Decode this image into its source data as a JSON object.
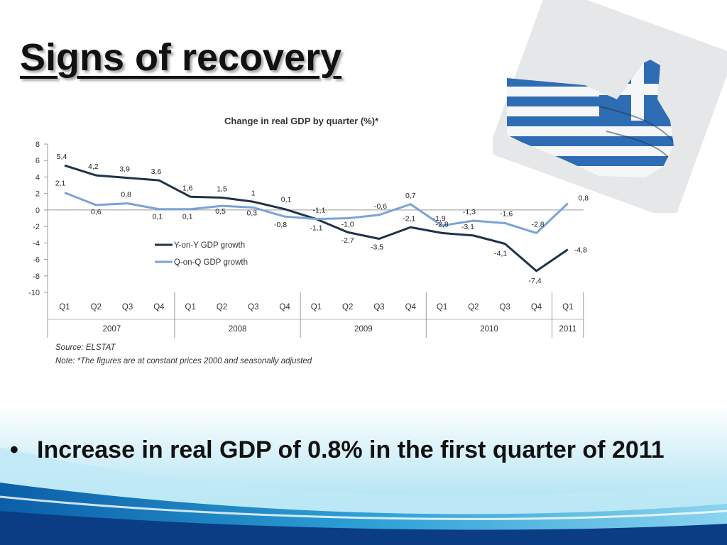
{
  "slide": {
    "title": "Signs of recovery",
    "bullet": "Increase in real GDP of 0.8% in the first quarter of 2011"
  },
  "colors": {
    "yoy_line": "#1f3349",
    "qoq_line": "#7aa3d6",
    "greek_blue": "#2e6db4"
  },
  "photo": {
    "icon": "greek-flag-thumbs-up"
  },
  "chart_data": {
    "type": "line",
    "title": "Change in real GDP by quarter (%)*",
    "categories": [
      "Q1",
      "Q2",
      "Q3",
      "Q4",
      "Q1",
      "Q2",
      "Q3",
      "Q4",
      "Q1",
      "Q2",
      "Q3",
      "Q4",
      "Q1",
      "Q2",
      "Q3",
      "Q4",
      "Q1"
    ],
    "year_groups": [
      {
        "label": "2007",
        "quarters": 4
      },
      {
        "label": "2008",
        "quarters": 4
      },
      {
        "label": "2009",
        "quarters": 4
      },
      {
        "label": "2010",
        "quarters": 4
      },
      {
        "label": "2011",
        "quarters": 1
      }
    ],
    "series": [
      {
        "name": "Y-on-Y GDP growth",
        "values": [
          5.4,
          4.2,
          3.9,
          3.6,
          1.6,
          1.5,
          1.0,
          0.1,
          -1.1,
          -2.7,
          -3.5,
          -2.1,
          -2.8,
          -3.1,
          -4.1,
          -7.4,
          -4.8
        ],
        "labels": [
          "5,4",
          "4,2",
          "3,9",
          "3,6",
          "1,6",
          "1,5",
          "1",
          "0,1",
          "-1,1",
          "-2,7",
          "-3,5",
          "-2,1",
          "-2,8",
          "-3,1",
          "-4,1",
          "-7,4",
          "-4,8"
        ]
      },
      {
        "name": "Q-on-Q GDP growth",
        "values": [
          2.1,
          0.6,
          0.8,
          0.1,
          0.1,
          0.5,
          0.3,
          -0.8,
          -1.1,
          -1.0,
          -0.6,
          0.7,
          -1.9,
          -1.3,
          -1.6,
          -2.8,
          0.8
        ],
        "labels": [
          "2,1",
          "0,6",
          "0,8",
          "0,1",
          "0,1",
          "0,5",
          "0,3",
          "-0,8",
          "-1,1",
          "-1,0",
          "-0,6",
          "0,7",
          "-1,9",
          "-1,3",
          "-1,6",
          "-2,8",
          "0,8"
        ]
      }
    ],
    "y_ticks": [
      8,
      6,
      4,
      2,
      0,
      -2,
      -4,
      -6,
      -8,
      -10
    ],
    "y_tick_labels": [
      "8",
      "6",
      "4",
      "2",
      "0",
      "-2",
      "-4",
      "-6",
      "-8",
      "-10"
    ],
    "ylim": [
      -10,
      8
    ],
    "legend_position": "center-left",
    "grid": false,
    "source": "Source: ELSTAT",
    "note": "Note: *The figures are at constant prices 2000 and seasonally adjusted"
  }
}
